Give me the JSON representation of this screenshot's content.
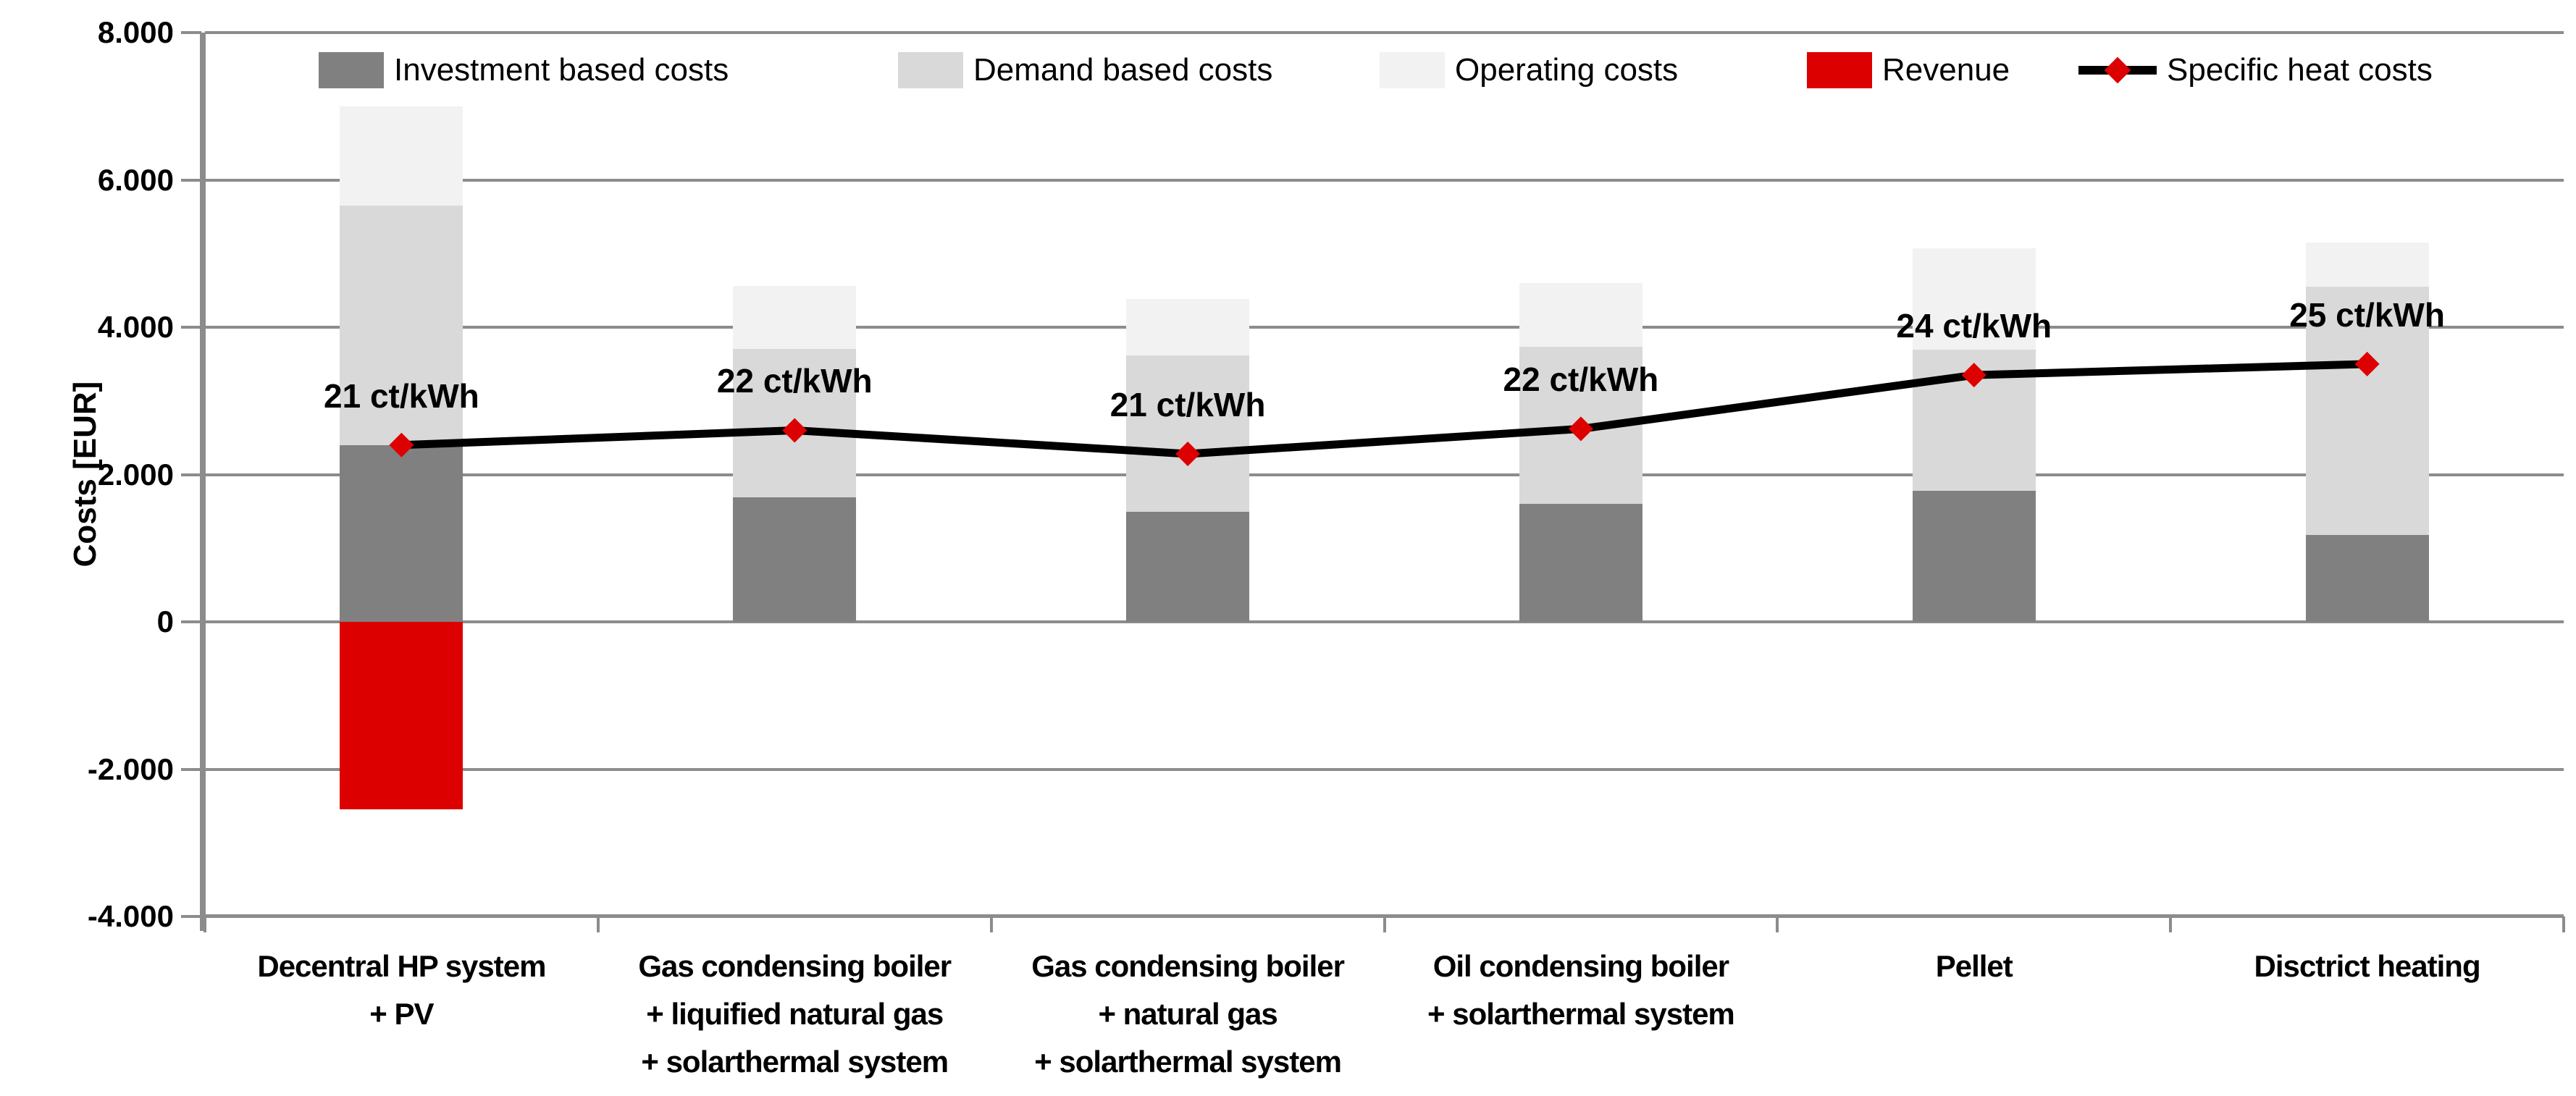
{
  "chart_data": {
    "type": "bar",
    "stacked": true,
    "grid": true,
    "legend_position": "top",
    "ylabel": "Costs [EUR]",
    "ylim": [
      -4000,
      8000
    ],
    "ytick_step": 2000,
    "y_axis_ticks": [
      {
        "label": "8.000",
        "value": 8000
      },
      {
        "label": "6.000",
        "value": 6000
      },
      {
        "label": "4.000",
        "value": 4000
      },
      {
        "label": "2.000",
        "value": 2000
      },
      {
        "label": "0",
        "value": 0
      },
      {
        "label": "-2.000",
        "value": -2000
      },
      {
        "label": "-4.000",
        "value": -4000
      }
    ],
    "categories": [
      [
        "Decentral HP system",
        "+ PV"
      ],
      [
        "Gas condensing boiler",
        "+ liquified natural gas",
        "+ solarthermal system"
      ],
      [
        "Gas condensing boiler",
        "+ natural gas",
        "+ solarthermal system"
      ],
      [
        "Oil condensing boiler",
        "+ solarthermal system"
      ],
      [
        "Pellet"
      ],
      [
        "Disctrict heating"
      ]
    ],
    "series": [
      {
        "key": "investment",
        "name": "Investment based costs",
        "color": "#808080",
        "values": [
          2400,
          1690,
          1490,
          1600,
          1780,
          1180
        ]
      },
      {
        "key": "demand",
        "name": "Demand based costs",
        "color": "#d9d9d9",
        "values": [
          3250,
          2020,
          2130,
          2130,
          1920,
          3370
        ]
      },
      {
        "key": "operating",
        "name": "Operating costs",
        "color": "#f2f2f2",
        "values": [
          1350,
          850,
          760,
          870,
          1370,
          600
        ]
      },
      {
        "key": "revenue",
        "name": "Revenue",
        "color": "#dd0000",
        "values": [
          -2550,
          0,
          0,
          0,
          0,
          0
        ]
      }
    ],
    "line_series": {
      "key": "specific-heat-costs",
      "name": "Specific heat costs",
      "line_color": "#000000",
      "marker_color": "#dd0000",
      "values": [
        2400,
        2600,
        2280,
        2620,
        3350,
        3500
      ],
      "point_labels": [
        "21 ct/kWh",
        "22 ct/kWh",
        "21 ct/kWh",
        "22 ct/kWh",
        "24 ct/kWh",
        "25 ct/kWh"
      ]
    },
    "colors": {
      "gridline": "#8c8c8c",
      "axis": "#8c8c8c",
      "text": "#000000"
    }
  }
}
